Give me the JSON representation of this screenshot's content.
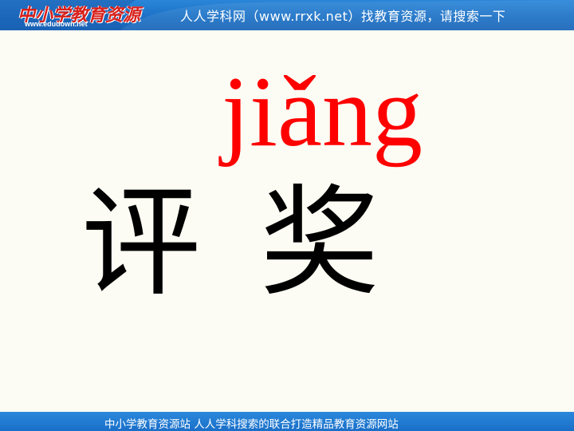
{
  "header": {
    "logo_text": "中小学教育资源",
    "logo_url": "www.edudown.net",
    "title": "人人学科网（www.rrxk.net）找教育资源，请搜索一下"
  },
  "slide": {
    "pinyin": "jiǎng",
    "char_1": "评",
    "char_2": "奖"
  },
  "footer": {
    "text": "中小学教育资源站 人人学科搜索的联合打造精品教育资源网站"
  },
  "colors": {
    "bar_blue": "#1a6fc4",
    "pinyin_red": "#ff0000",
    "background": "#fcfcf4"
  }
}
